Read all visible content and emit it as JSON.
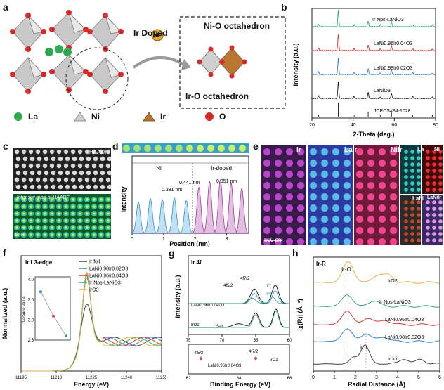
{
  "panel_labels": {
    "a": "a",
    "b": "b",
    "c": "c",
    "d": "d",
    "e": "e",
    "f": "f",
    "g": "g",
    "h": "h"
  },
  "panel_a": {
    "doped_label": "Ir Doped",
    "box_top": "Ni-O octahedron",
    "box_bottom": "Ir-O octahedron",
    "legend": [
      {
        "label": "La",
        "color": "#2fa84f"
      },
      {
        "label": "Ni",
        "color": "#cfcfcf"
      },
      {
        "label": "Ir",
        "color": "#b9772f"
      },
      {
        "label": "O",
        "color": "#d42a2a"
      }
    ]
  },
  "chart_b": {
    "type": "line",
    "xlabel": "2-Theta (deg.)",
    "ylabel": "Intensity (a.u.)",
    "xlim": [
      20,
      80
    ],
    "xticks": [
      20,
      40,
      60,
      80
    ],
    "series": [
      {
        "name": "Ir Nps-LaNiO3",
        "color": "#2fa870"
      },
      {
        "name": "LaNi0.96Ir0.04O3",
        "color": "#d63a3a"
      },
      {
        "name": "LaNi0.98Ir0.02O3",
        "color": "#3a7fc8"
      },
      {
        "name": "LaNiO3",
        "color": "#222222"
      }
    ],
    "reference": "JCPDS#34-1028",
    "peaks": [
      23.2,
      32.8,
      40.5,
      47.3,
      53.2,
      58.6,
      68.9,
      78.5
    ],
    "peak_heights": [
      0.15,
      1.0,
      0.12,
      0.35,
      0.1,
      0.3,
      0.12,
      0.1
    ]
  },
  "panel_c": {
    "top_label": "HAADF",
    "top_scale": "0.5 nm",
    "bottom_label": "Intensity map of HAADF",
    "bottom_scale": "1 nm"
  },
  "chart_d": {
    "type": "line",
    "xlabel": "Position (nm)",
    "ylabel": "Intensity",
    "xlim": [
      0,
      3.7
    ],
    "xticks": [
      0,
      1,
      2,
      3
    ],
    "region_ni": "Ni",
    "region_ir": "Ir-doped",
    "dist_1": "0.381 nm",
    "dist_2": "0.441 nm",
    "dist_3": "0.351 nm",
    "peaks_ni": [
      0.2,
      0.58,
      0.96,
      1.34,
      1.72
    ],
    "peaks_ir": [
      2.12,
      2.46,
      2.8,
      3.14,
      3.48
    ],
    "heights_ni": [
      0.55,
      0.62,
      0.6,
      0.63,
      0.58
    ],
    "heights_ir": [
      0.82,
      0.92,
      0.95,
      0.9,
      0.8
    ]
  },
  "panel_e": {
    "labels": [
      "Ir",
      "LaIr",
      "NiIr",
      "La",
      "Ni",
      "LaNi",
      "LaNiIr"
    ],
    "scale": "500 pm"
  },
  "chart_f": {
    "type": "line",
    "title": "Ir L3-edge",
    "xlabel": "Energy (eV)",
    "ylabel": "Normalized (a.u.)",
    "xlim": [
      11195,
      11255
    ],
    "xticks": [
      11195,
      11210,
      11225,
      11240,
      11255
    ],
    "series": [
      {
        "name": "Ir foil",
        "color": "#444444"
      },
      {
        "name": "LaNi0.98Ir0.02O3",
        "color": "#3a7fc8"
      },
      {
        "name": "LaNi0.96Ir0.04O3",
        "color": "#d63a3a"
      },
      {
        "name": "Ir Nps-LaNiO3",
        "color": "#2fa870"
      },
      {
        "name": "IrO2",
        "color": "#e3b23c"
      }
    ],
    "inset": {
      "ylabel": "Valance value",
      "yticks": [
        2.5,
        3.0,
        3.5,
        4.0
      ],
      "ylim": [
        2.5,
        4.0
      ],
      "values": [
        3.7,
        3.1,
        2.6
      ]
    }
  },
  "chart_g": {
    "type": "line",
    "title": "Ir 4f",
    "xlabel": "Binding Energy (eV)",
    "ylabel": "Intensity (a.u.)",
    "xlim": [
      75,
      60
    ],
    "xticks": [
      75,
      70,
      65,
      60
    ],
    "xticks_bottom": [
      62,
      64,
      66
    ],
    "peak_labels": [
      "4f5/2",
      "4f7/2"
    ],
    "ir3": "Ir³⁺",
    "ir4": "Ir⁴⁺",
    "sample_1": "LaNi0.96Ir0.04O3",
    "sample_2": "IrO2",
    "sat": "Sat"
  },
  "chart_h": {
    "type": "line",
    "title": "Ir-R",
    "xlabel": "Radial Distance (Å)",
    "ylabel": "|χ(R)| (Å⁻³)",
    "xlim": [
      0,
      6
    ],
    "xticks": [
      0,
      1,
      2,
      3,
      4,
      5,
      6
    ],
    "annot_iro": "Ir-O",
    "annot_irir": "Ir-Ir",
    "series": [
      {
        "name": "IrO2",
        "color": "#e3b23c"
      },
      {
        "name": "Ir Nps-LaNiO3",
        "color": "#2fa870"
      },
      {
        "name": "LaNi0.96Ir0.04O3",
        "color": "#d63a3a"
      },
      {
        "name": "LaNi0.98Ir0.02O3",
        "color": "#3a7fc8"
      },
      {
        "name": "Ir foil",
        "color": "#444444"
      }
    ]
  }
}
